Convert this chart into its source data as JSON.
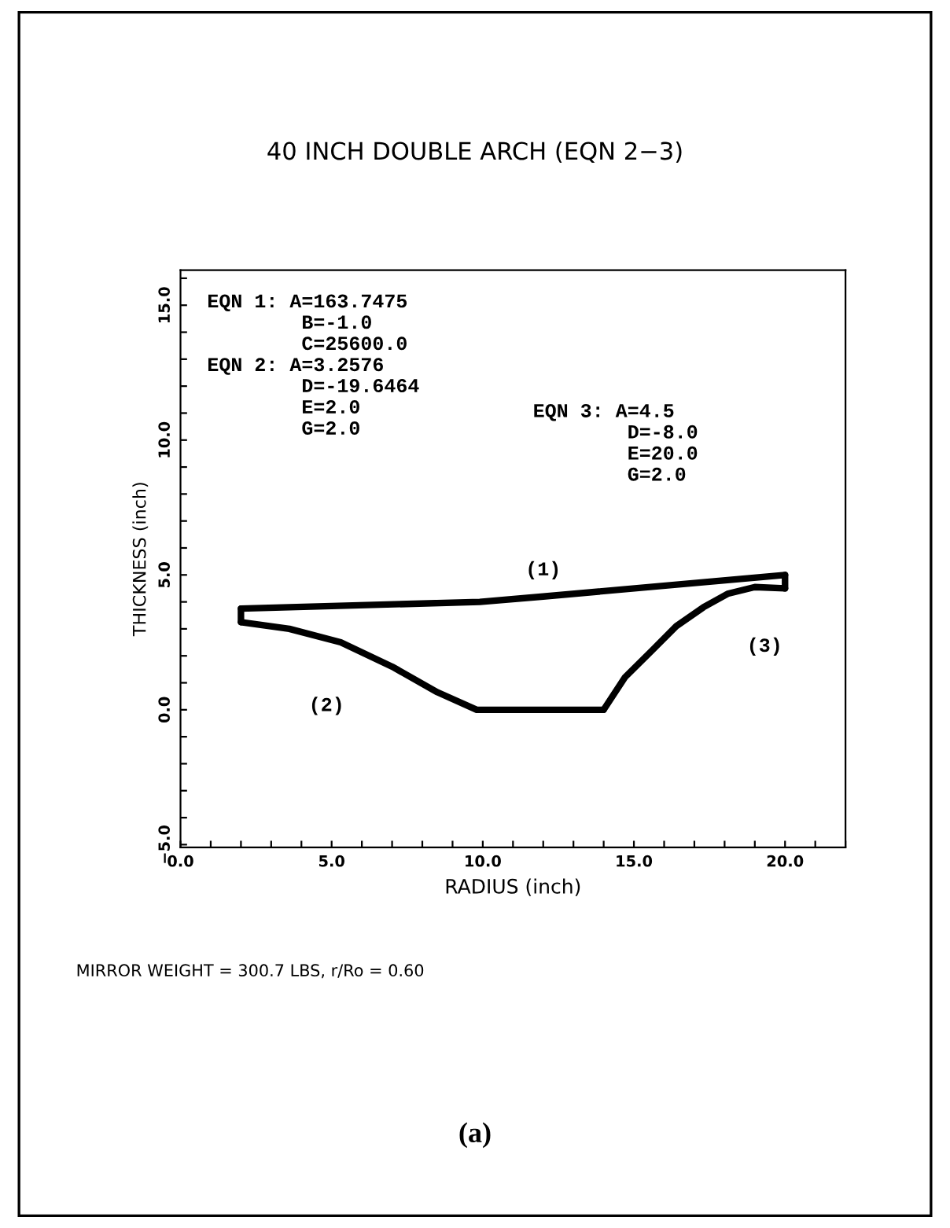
{
  "chart_data": {
    "type": "line",
    "title": "40 INCH DOUBLE ARCH (EQN 2−3)",
    "xlabel": "RADIUS (inch)",
    "ylabel": "THICKNESS (inch)",
    "series": [
      {
        "name": "(1)",
        "color": "#000000",
        "x": [
          2.0,
          9.9,
          12.0,
          20.0
        ],
        "values": [
          3.75,
          4.0,
          4.2,
          5.0
        ]
      },
      {
        "name": "(2)",
        "color": "#000000",
        "x": [
          2.0,
          3.6,
          5.3,
          7.0,
          8.5,
          9.8,
          14.0
        ],
        "values": [
          3.25,
          3.0,
          2.5,
          1.6,
          0.65,
          0.0,
          0.0
        ]
      },
      {
        "name": "(3)",
        "color": "#000000",
        "x": [
          14.0,
          14.7,
          15.6,
          16.4,
          17.3,
          18.1,
          19.0,
          20.0
        ],
        "values": [
          0.0,
          1.2,
          2.2,
          3.1,
          3.8,
          4.3,
          4.55,
          4.5
        ]
      },
      {
        "color": "#000000",
        "x": [
          2.0,
          2.0
        ],
        "values": [
          3.25,
          3.75
        ]
      },
      {
        "color": "#000000",
        "x": [
          20.0,
          20.0
        ],
        "values": [
          4.5,
          5.0
        ]
      }
    ],
    "xlim": [
      0,
      22
    ],
    "ylim": [
      -5.1,
      16.3
    ],
    "xticks": [
      {
        "value": 0,
        "label": "0.0"
      },
      {
        "value": 1,
        "label": null
      },
      {
        "value": 2,
        "label": null
      },
      {
        "value": 3,
        "label": null
      },
      {
        "value": 4,
        "label": null
      },
      {
        "value": 5,
        "label": "5.0"
      },
      {
        "value": 6,
        "label": null
      },
      {
        "value": 7,
        "label": null
      },
      {
        "value": 8,
        "label": null
      },
      {
        "value": 9,
        "label": null
      },
      {
        "value": 10,
        "label": "10.0"
      },
      {
        "value": 11,
        "label": null
      },
      {
        "value": 12,
        "label": null
      },
      {
        "value": 13,
        "label": null
      },
      {
        "value": 14,
        "label": null
      },
      {
        "value": 15,
        "label": "15.0"
      },
      {
        "value": 16,
        "label": null
      },
      {
        "value": 17,
        "label": null
      },
      {
        "value": 18,
        "label": null
      },
      {
        "value": 19,
        "label": null
      },
      {
        "value": 20,
        "label": "20.0"
      },
      {
        "value": 21,
        "label": null
      },
      {
        "value": 22,
        "label": null
      }
    ],
    "yticks": [
      {
        "value": -5,
        "label": "−5.0"
      },
      {
        "value": -4,
        "label": null
      },
      {
        "value": -3,
        "label": null
      },
      {
        "value": -2,
        "label": null
      },
      {
        "value": -1,
        "label": null
      },
      {
        "value": 0,
        "label": "0.0"
      },
      {
        "value": 1,
        "label": null
      },
      {
        "value": 2,
        "label": null
      },
      {
        "value": 3,
        "label": null
      },
      {
        "value": 4,
        "label": null
      },
      {
        "value": 5,
        "label": "5.0"
      },
      {
        "value": 6,
        "label": null
      },
      {
        "value": 7,
        "label": null
      },
      {
        "value": 8,
        "label": null
      },
      {
        "value": 9,
        "label": null
      },
      {
        "value": 10,
        "label": "10.0"
      },
      {
        "value": 11,
        "label": null
      },
      {
        "value": 12,
        "label": null
      },
      {
        "value": 13,
        "label": null
      },
      {
        "value": 14,
        "label": null
      },
      {
        "value": 15,
        "label": "15.0"
      },
      {
        "value": 16,
        "label": null
      }
    ],
    "grid": false,
    "legend": false,
    "marker": "none",
    "line_style": "solid",
    "annotations": [
      "EQN 1: A=163.7475\n        B=-1.0\n        C=25600.0\nEQN 2: A=3.2576\n        D=-19.6464\n        E=2.0\n        G=2.0",
      "EQN 3: A=4.5\n        D=-8.0\n        E=20.0\n        G=2.0",
      "MIRROR WEIGHT = 300.7 LBS, r/Ro = 0.60",
      "(a)"
    ]
  }
}
